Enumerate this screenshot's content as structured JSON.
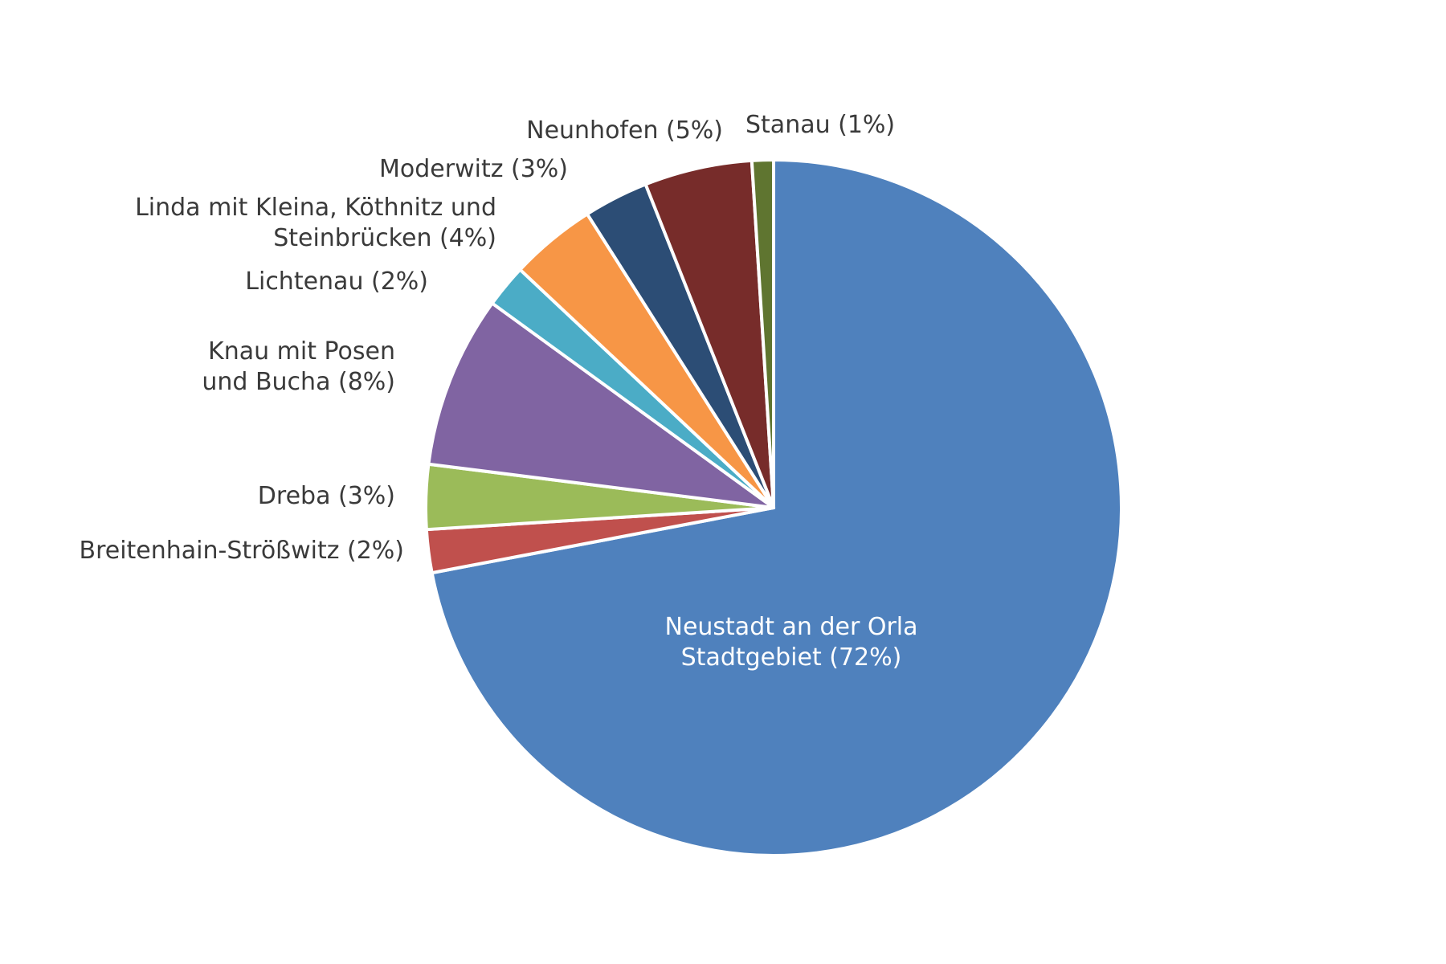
{
  "chart_data": {
    "type": "pie",
    "start_angle_deg": 0,
    "direction": "clockwise",
    "slices": [
      {
        "label_lines": [
          "Neustadt an der Orla",
          "Stadtgebiet (72%)"
        ],
        "value": 72,
        "color": "#4f81bd"
      },
      {
        "label_lines": [
          "Breitenhain-Strößwitz (2%)"
        ],
        "value": 2,
        "color": "#c0504d"
      },
      {
        "label_lines": [
          "Dreba (3%)"
        ],
        "value": 3,
        "color": "#9bbb59"
      },
      {
        "label_lines": [
          "Knau mit Posen",
          "und Bucha (8%)"
        ],
        "value": 8,
        "color": "#8064a2"
      },
      {
        "label_lines": [
          "Lichtenau (2%)"
        ],
        "value": 2,
        "color": "#4bacc6"
      },
      {
        "label_lines": [
          "Linda mit Kleina, Köthnitz und",
          "Steinbrücken (4%)"
        ],
        "value": 4,
        "color": "#f79646"
      },
      {
        "label_lines": [
          "Moderwitz (3%)"
        ],
        "value": 3,
        "color": "#2c4d75"
      },
      {
        "label_lines": [
          "Neunhofen (5%)"
        ],
        "value": 5,
        "color": "#772c2a"
      },
      {
        "label_lines": [
          "Stanau (1%)"
        ],
        "value": 1,
        "color": "#5f7530"
      }
    ]
  }
}
